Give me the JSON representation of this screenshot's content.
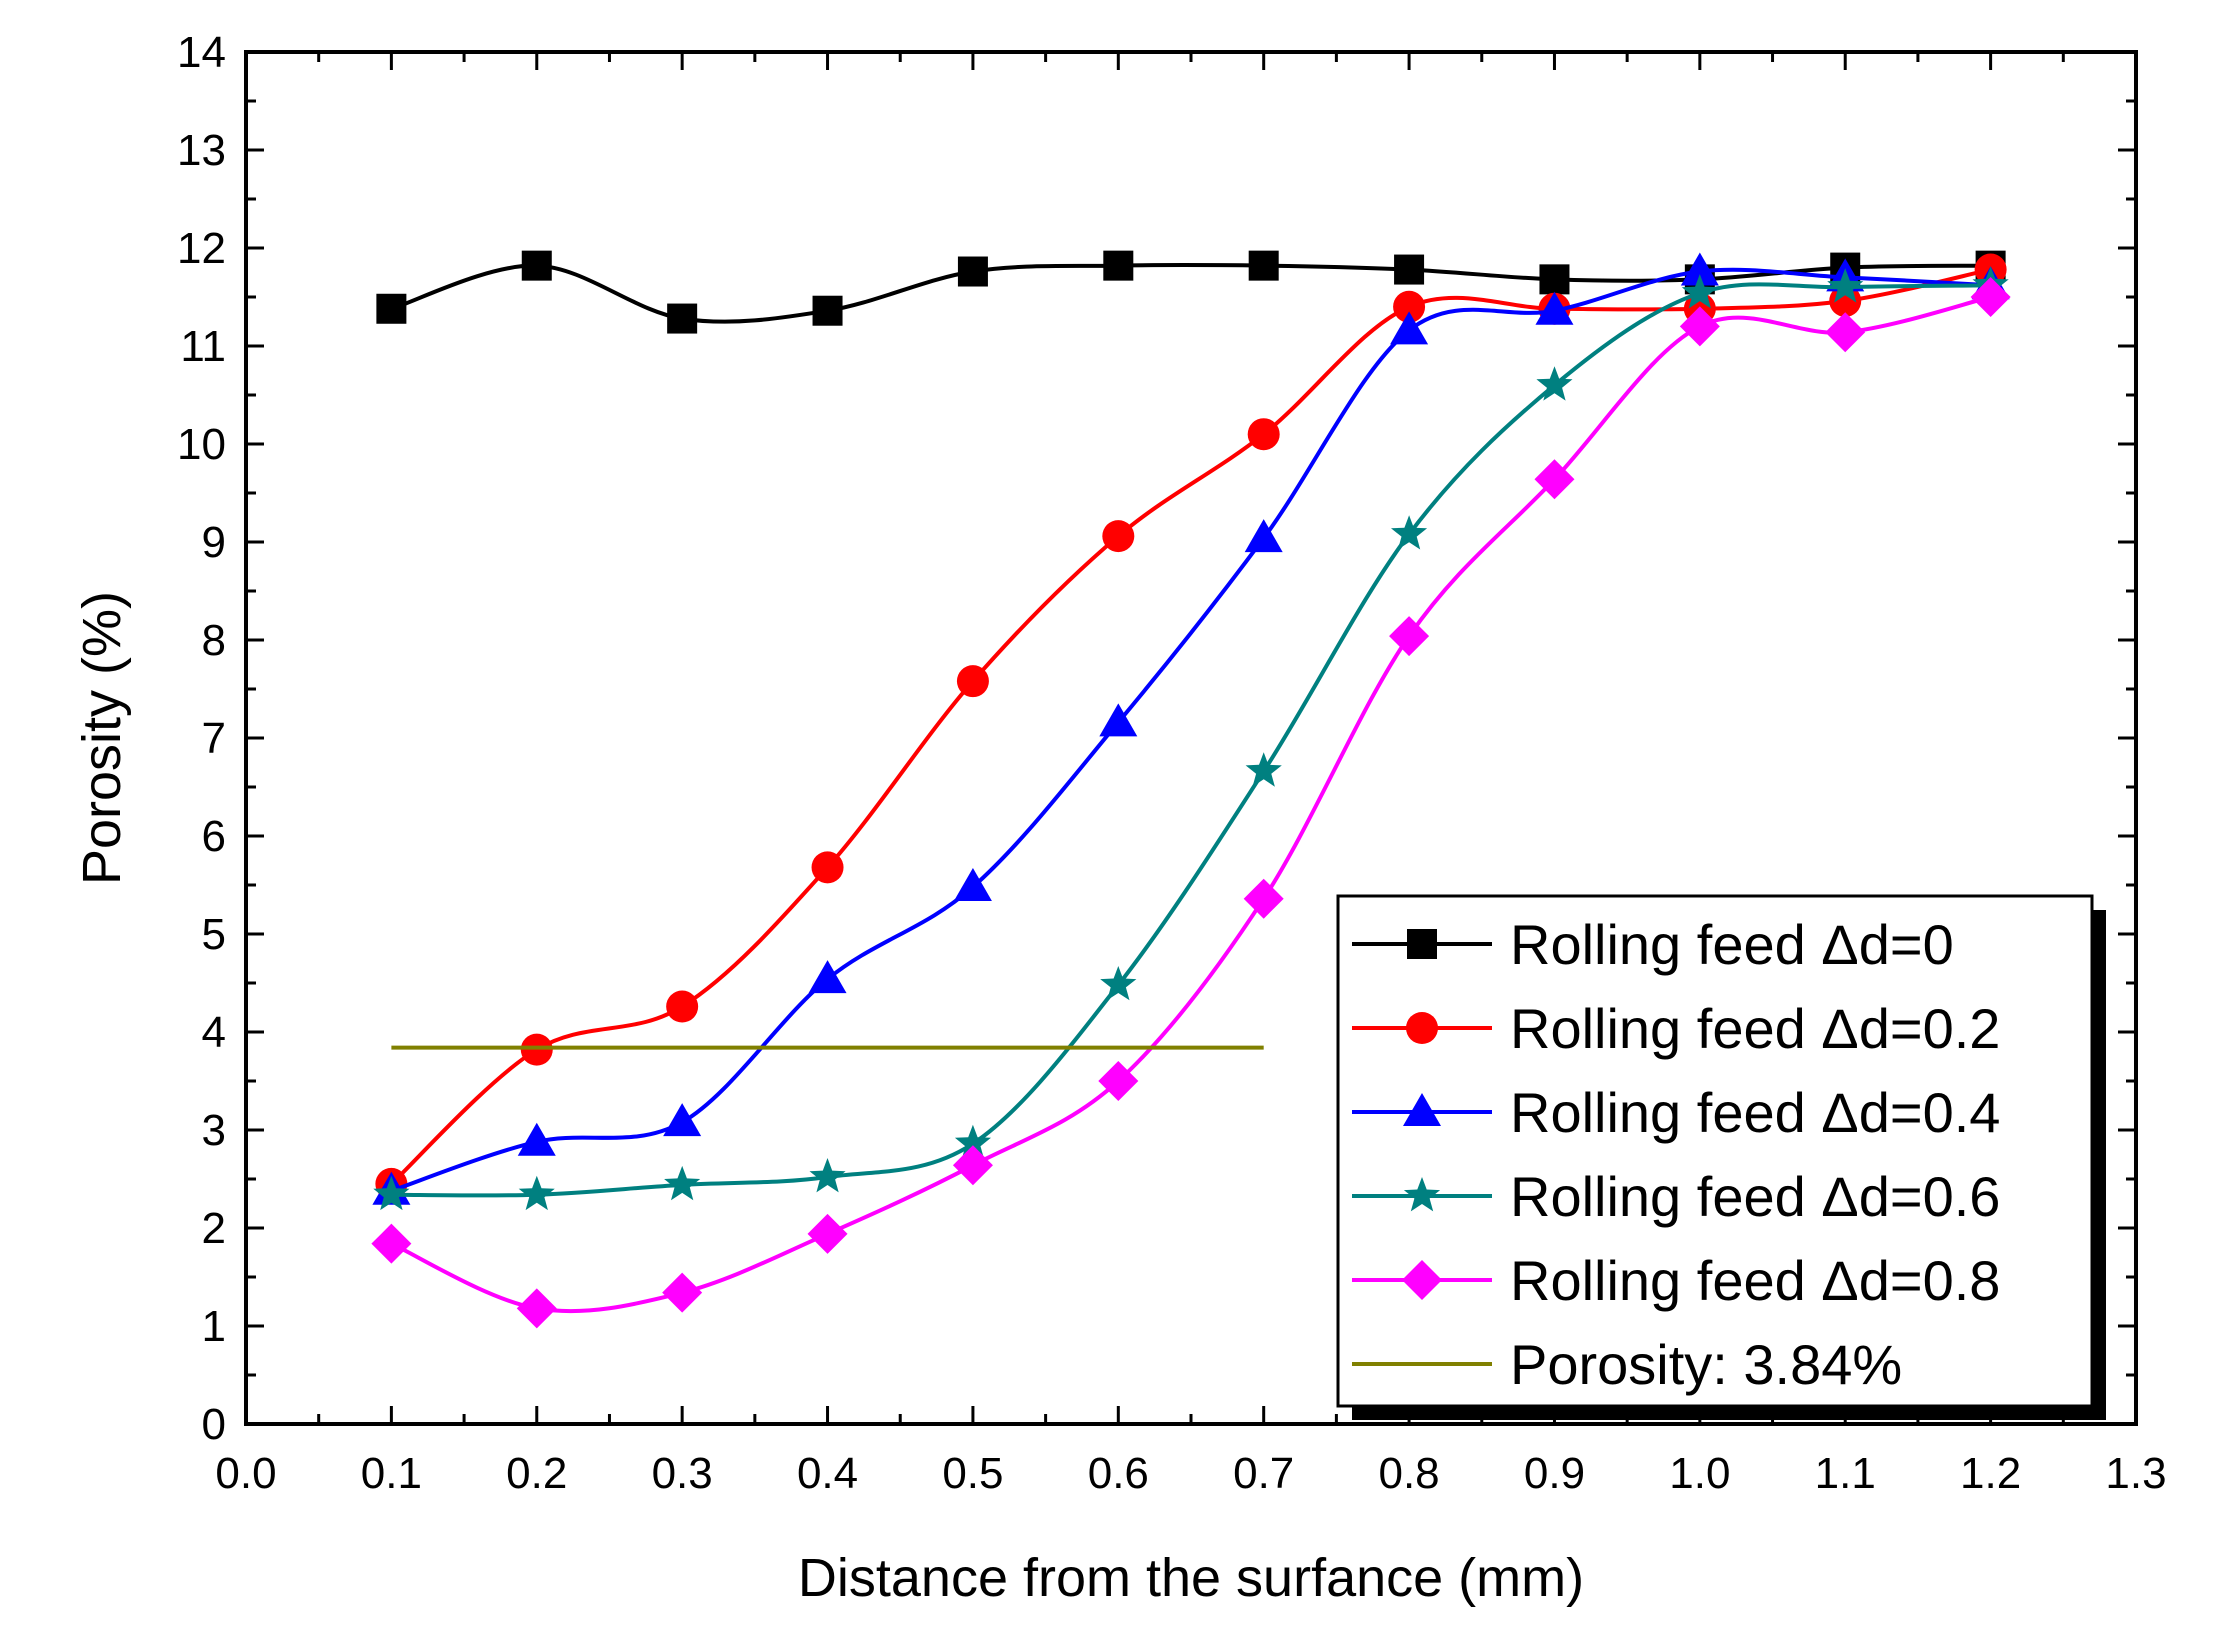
{
  "chart_data": {
    "type": "line",
    "title": "",
    "xlabel": "Distance from the surfance (mm)",
    "ylabel": "Porosity (%)",
    "xlim": [
      0.0,
      1.3
    ],
    "ylim": [
      0,
      14
    ],
    "x_ticks": [
      "0.0",
      "0.1",
      "0.2",
      "0.3",
      "0.4",
      "0.5",
      "0.6",
      "0.7",
      "0.8",
      "0.9",
      "1.0",
      "1.1",
      "1.2",
      "1.3"
    ],
    "y_ticks": [
      "0",
      "1",
      "2",
      "3",
      "4",
      "5",
      "6",
      "7",
      "8",
      "9",
      "10",
      "11",
      "12",
      "13",
      "14"
    ],
    "grid": false,
    "legend_position": "bottom-right",
    "x": [
      0.1,
      0.2,
      0.3,
      0.4,
      0.5,
      0.6,
      0.7,
      0.8,
      0.9,
      1.0,
      1.1,
      1.2
    ],
    "series": [
      {
        "name": "Rolling feed Δd=0",
        "color": "#000000",
        "marker": "square",
        "values": [
          11.38,
          11.82,
          11.28,
          11.36,
          11.76,
          11.82,
          11.82,
          11.78,
          11.68,
          11.68,
          11.8,
          11.82
        ]
      },
      {
        "name": "Rolling feed Δd=0.2",
        "color": "#ff0000",
        "marker": "circle",
        "values": [
          2.45,
          3.82,
          4.26,
          5.68,
          7.58,
          9.06,
          10.1,
          11.4,
          11.38,
          11.38,
          11.46,
          11.78
        ]
      },
      {
        "name": "Rolling feed Δd=0.4",
        "color": "#0000ff",
        "marker": "triangle",
        "values": [
          2.38,
          2.88,
          3.08,
          4.54,
          5.48,
          7.16,
          9.04,
          11.16,
          11.36,
          11.76,
          11.7,
          11.62
        ]
      },
      {
        "name": "Rolling feed Δd=0.6",
        "color": "#008080",
        "marker": "star",
        "values": [
          2.34,
          2.34,
          2.44,
          2.52,
          2.86,
          4.48,
          6.66,
          9.08,
          10.6,
          11.54,
          11.6,
          11.62
        ]
      },
      {
        "name": "Rolling feed Δd=0.8",
        "color": "#ff00ff",
        "marker": "diamond",
        "values": [
          1.84,
          1.18,
          1.34,
          1.94,
          2.64,
          3.5,
          5.36,
          8.04,
          9.64,
          11.2,
          11.14,
          11.5
        ]
      }
    ],
    "reference_line": {
      "name": "Porosity: 3.84%",
      "color": "#808000",
      "y": 3.84,
      "x_range": [
        0.1,
        0.7
      ]
    }
  }
}
